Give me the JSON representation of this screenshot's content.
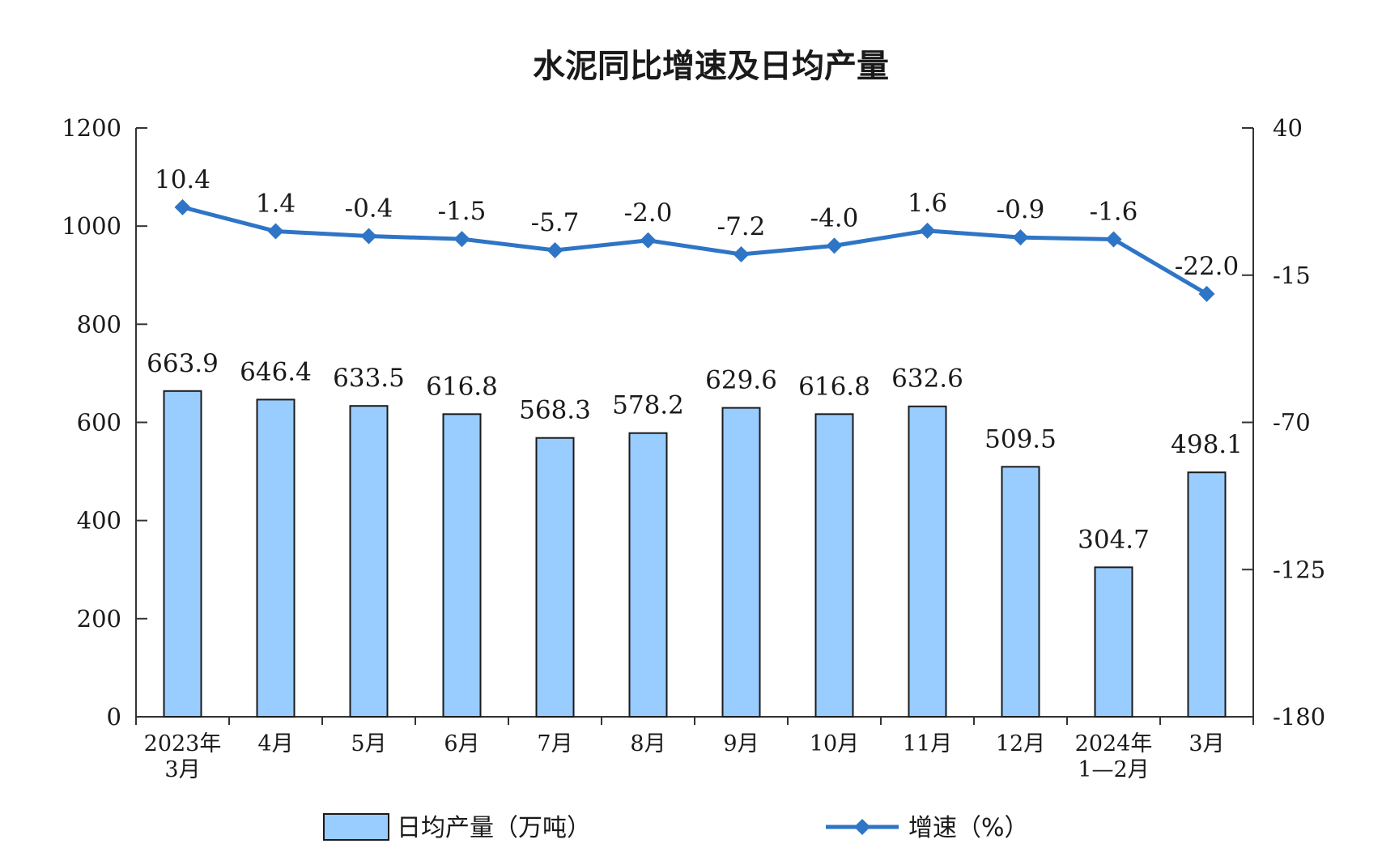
{
  "chart_data": {
    "type": "bar+line",
    "title": "水泥同比增速及日均产量",
    "categories": [
      [
        "2023年",
        "3月"
      ],
      [
        "4月"
      ],
      [
        "5月"
      ],
      [
        "6月"
      ],
      [
        "7月"
      ],
      [
        "8月"
      ],
      [
        "9月"
      ],
      [
        "10月"
      ],
      [
        "11月"
      ],
      [
        "12月"
      ],
      [
        "2024年",
        "1—2月"
      ],
      [
        "3月"
      ]
    ],
    "left_axis": {
      "ylim": [
        0,
        1200
      ],
      "ticks": [
        0,
        200,
        400,
        600,
        800,
        1000,
        1200
      ]
    },
    "right_axis": {
      "ylim": [
        -180,
        40
      ],
      "ticks": [
        -180,
        -125,
        -70,
        -15,
        40
      ]
    },
    "series": [
      {
        "name": "日均产量（万吨）",
        "type": "bar",
        "axis": "left",
        "color": "#99ccff",
        "values": [
          663.9,
          646.4,
          633.5,
          616.8,
          568.3,
          578.2,
          629.6,
          616.8,
          632.6,
          509.5,
          304.7,
          498.1
        ],
        "labels": [
          "663.9",
          "646.4",
          "633.5",
          "616.8",
          "568.3",
          "578.2",
          "629.6",
          "616.8",
          "632.6",
          "509.5",
          "304.7",
          "498.1"
        ]
      },
      {
        "name": "增速（%）",
        "type": "line",
        "axis": "right",
        "color": "#2e75c6",
        "values": [
          10.4,
          1.4,
          -0.4,
          -1.5,
          -5.7,
          -2.0,
          -7.2,
          -4.0,
          1.6,
          -0.9,
          -1.6,
          -22.0
        ],
        "labels": [
          "10.4",
          "1.4",
          "-0.4",
          "-1.5",
          "-5.7",
          "-2.0",
          "-7.2",
          "-4.0",
          "1.6",
          "-0.9",
          "-1.6",
          "-22.0"
        ]
      }
    ],
    "grid": false,
    "legend": "bottom"
  }
}
